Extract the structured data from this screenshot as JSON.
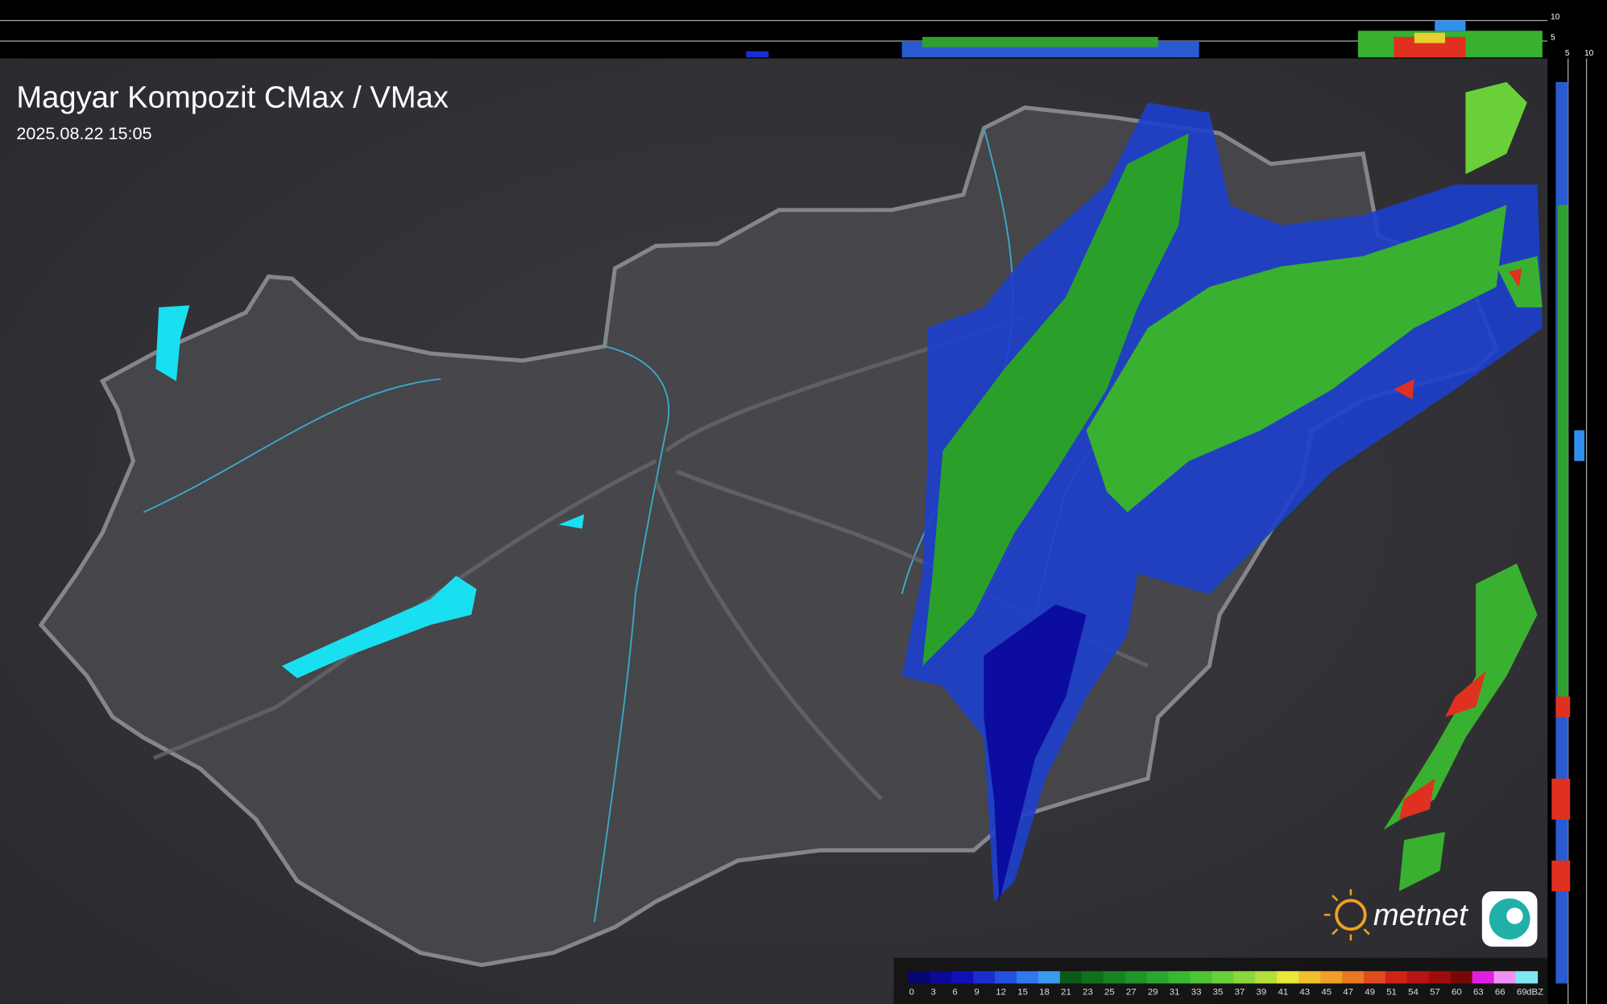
{
  "header": {
    "title": "Magyar Kompozit CMax / VMax",
    "timestamp": "2025.08.22 15:05"
  },
  "top_axis": {
    "ticks": [
      10,
      5
    ]
  },
  "side_axis": {
    "ticks": [
      5,
      10
    ]
  },
  "logo": "metnet",
  "legend": {
    "unit": "dBZ",
    "ticks": [
      0,
      3,
      6,
      9,
      12,
      15,
      18,
      21,
      23,
      25,
      27,
      29,
      31,
      33,
      35,
      37,
      39,
      41,
      43,
      45,
      47,
      49,
      51,
      54,
      57,
      60,
      63,
      66,
      69
    ],
    "colors": [
      "#06066e",
      "#0a0a96",
      "#1010b8",
      "#1a2ed0",
      "#2450e0",
      "#2f78ee",
      "#3a9cf0",
      "#0c5a18",
      "#10701c",
      "#168422",
      "#1e9628",
      "#28a82e",
      "#36b832",
      "#4cc436",
      "#68d03a",
      "#8ad83c",
      "#b4e03e",
      "#e8e83a",
      "#f0c030",
      "#f0a02a",
      "#e87824",
      "#e04c1e",
      "#d0241a",
      "#b81414",
      "#a00c0c",
      "#780808",
      "#e020e0",
      "#f090f0",
      "#80e8f0"
    ]
  }
}
